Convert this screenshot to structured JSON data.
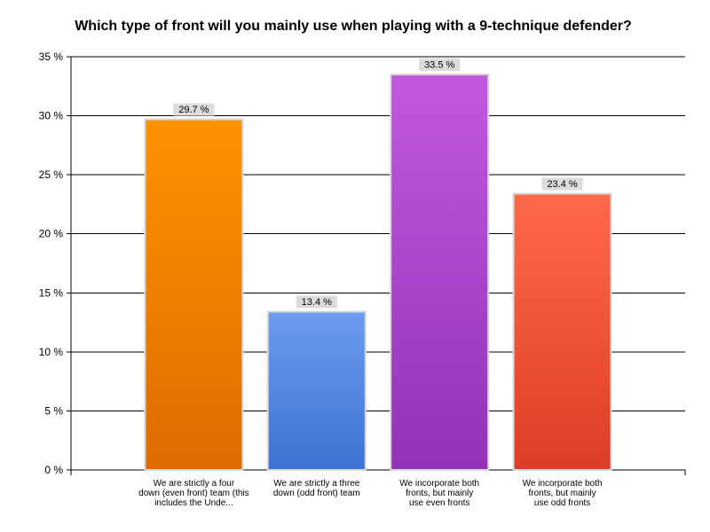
{
  "chart_data": {
    "type": "bar",
    "title": "Which type of front will you mainly use when playing with a 9-technique defender?",
    "categories": [
      [
        "We are strictly a four",
        "down (even front) team (this",
        "includes the Unde..."
      ],
      [
        "We are strictly a three",
        "down (odd front) team"
      ],
      [
        "We incorporate both",
        "fronts, but mainly",
        "use even fronts"
      ],
      [
        "We incorporate both",
        "fronts, but mainly",
        "use odd fronts"
      ]
    ],
    "values": [
      29.7,
      13.4,
      33.5,
      23.4
    ],
    "value_labels": [
      "29.7 %",
      "13.4 %",
      "33.5 %",
      "23.4 %"
    ],
    "colors": [
      [
        "#ff9200",
        "#dd6c00"
      ],
      [
        "#6d9cf0",
        "#3d72d3"
      ],
      [
        "#c258de",
        "#9332b7"
      ],
      [
        "#ff6a4a",
        "#dc3e25"
      ]
    ],
    "ylim": [
      0,
      35
    ],
    "y_ticks": [
      0,
      5,
      10,
      15,
      20,
      25,
      30,
      35
    ],
    "y_tick_labels": [
      "0 %",
      "5 %",
      "10 %",
      "15 %",
      "20 %",
      "25 %",
      "30 %",
      "35 %"
    ],
    "grid": true,
    "legend": "none",
    "xlabel": "",
    "ylabel": ""
  }
}
